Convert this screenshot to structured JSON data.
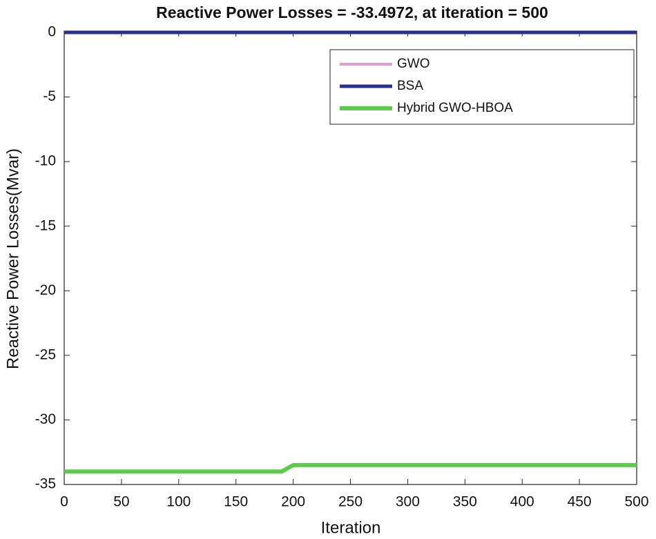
{
  "chart_data": {
    "type": "line",
    "title": "Reactive Power Losses = -33.4972, at iteration = 500",
    "x_label": "Iteration",
    "y_label": "Reactive Power Losses(Mvar)",
    "x": [
      0,
      190,
      200,
      500
    ],
    "series": [
      {
        "name": "GWO",
        "color": "#e39bd0",
        "values": [
          0,
          0,
          0,
          0
        ]
      },
      {
        "name": "BSA",
        "color": "#2b2f8f",
        "values": [
          0,
          0,
          0,
          0
        ]
      },
      {
        "name": "Hybrid GWO-HBOA",
        "color": "#5ccb4a",
        "values": [
          -34.0,
          -34.0,
          -33.5,
          -33.5
        ]
      }
    ],
    "xlim": [
      0,
      500
    ],
    "ylim": [
      -35,
      0
    ],
    "xticks": [
      0,
      50,
      100,
      150,
      200,
      250,
      300,
      350,
      400,
      450,
      500
    ],
    "yticks": [
      0,
      -5,
      -10,
      -15,
      -20,
      -25,
      -30,
      -35
    ],
    "legend": "upper right",
    "grid": false
  }
}
